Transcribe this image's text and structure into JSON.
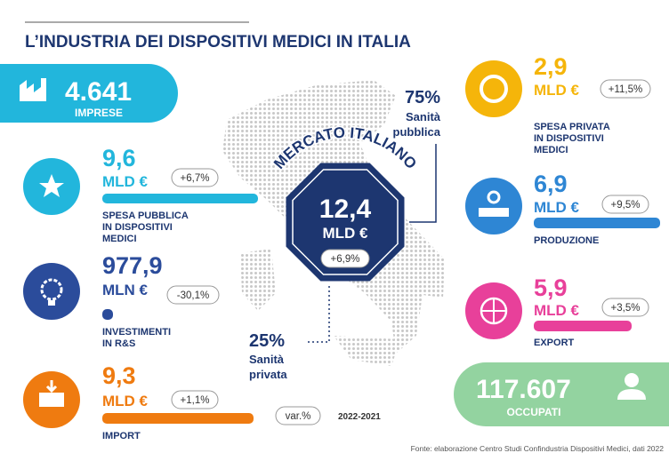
{
  "header": {
    "title": "L’INDUSTRIA DEI DISPOSITIVI MEDICI IN ITALIA"
  },
  "highlights": {
    "imprese": {
      "value": "4.641",
      "label": "IMPRESE"
    },
    "occupati": {
      "value": "117.607",
      "label": "OCCUPATI"
    }
  },
  "indicators": [
    {
      "value": "9,6",
      "unit": "MLD €",
      "change": "+6,7%",
      "label": [
        "SPESA PUBBLICA",
        "IN DISPOSITIVI",
        "MEDICI"
      ]
    },
    {
      "value": "977,9",
      "unit": "MLN €",
      "change": "-30,1%",
      "label": [
        "INVESTIMENTI",
        "IN R&S"
      ]
    },
    {
      "value": "9,3",
      "unit": "MLD €",
      "change": "+1,1%",
      "label": [
        "IMPORT"
      ]
    },
    {
      "value": "2,9",
      "unit": "MLD €",
      "change": "+11,5%",
      "label": [
        "SPESA PRIVATA",
        "IN DISPOSITIVI",
        "MEDICI"
      ]
    },
    {
      "value": "6,9",
      "unit": "MLD €",
      "change": "+9,5%",
      "label": [
        "PRODUZIONE"
      ]
    },
    {
      "value": "5,9",
      "unit": "MLD €",
      "change": "+3,5%",
      "label": [
        "EXPORT"
      ]
    }
  ],
  "market": {
    "title": "MERCATO ITALIANO",
    "value": "12,4",
    "unit": "MLD €",
    "change": "+6,9%",
    "public": {
      "share": "75%",
      "label": [
        "Sanità",
        "pubblica"
      ]
    },
    "private": {
      "share": "25%",
      "label": [
        "Sanità",
        "privata"
      ]
    }
  },
  "legend": {
    "change_label": "var.%",
    "period": "2022-2021"
  },
  "footer": {
    "source": "Fonte: elaborazione Centro Studi Confindustria Dispositivi Medici, dati 2022"
  }
}
